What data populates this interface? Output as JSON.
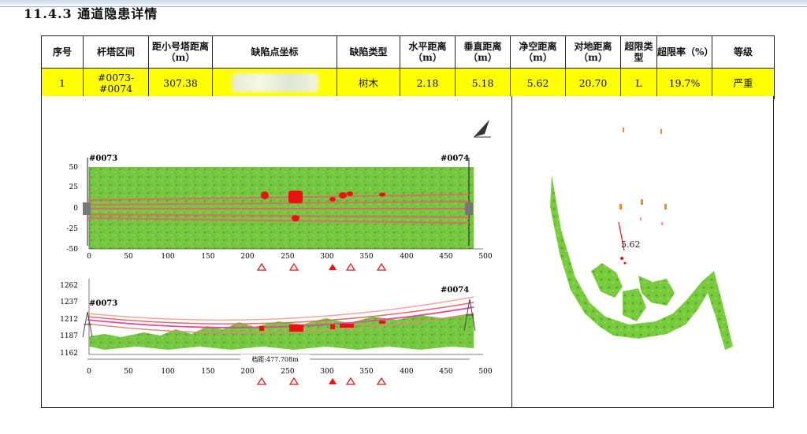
{
  "title": "11.4.3 通道隐患详情",
  "table": {
    "headers": [
      "序号",
      "杆塔区间",
      "距小号塔距离（m）",
      "缺陷点坐标",
      "缺陷类型",
      "水平距离（m）",
      "垂直距离（m）",
      "净空距离（m）",
      "对地距离（m）",
      "超限类型",
      "超限率（%）",
      "等级"
    ],
    "row": {
      "no": "1",
      "span": "#0073-#0074",
      "dist_small_tower": "307.38",
      "coordinate": "",
      "defect_type": "树木",
      "horizontal": "2.18",
      "vertical": "5.18",
      "clearance": "5.62",
      "ground": "20.70",
      "limit_type": "L",
      "limit_rate": "19.7%",
      "level": "严重"
    }
  },
  "plan_view": {
    "tower_left": "#0073",
    "tower_right": "#0074",
    "y_ticks": [
      "50",
      "25",
      "0",
      "-25",
      "-50"
    ],
    "x_ticks": [
      "0",
      "50",
      "100",
      "150",
      "200",
      "250",
      "300",
      "350",
      "400",
      "450",
      "500"
    ]
  },
  "profile_view": {
    "tower_left": "#0073",
    "tower_right": "#0074",
    "y_ticks": [
      "1262",
      "1237",
      "1212",
      "1187",
      "1162"
    ],
    "x_ticks": [
      "0",
      "50",
      "100",
      "150",
      "200",
      "250",
      "300",
      "350",
      "400",
      "450",
      "500"
    ],
    "span_label": "档距:477.708m"
  },
  "cross_section": {
    "clearance_label": "5.62"
  },
  "colors": {
    "vegetation": "#6cc63a",
    "defect": "#ee1111",
    "conductor": "#e06a6a",
    "highlight": "#ffff00"
  },
  "icons": [
    "north-arrow-icon",
    "warning-triangle-icon",
    "tower-icon"
  ]
}
